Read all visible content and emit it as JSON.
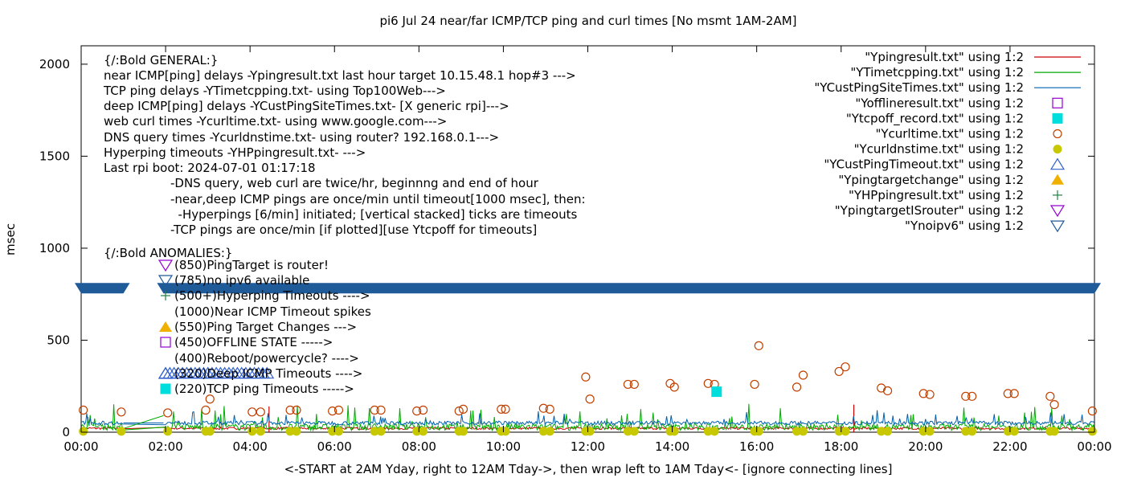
{
  "colors": {
    "ping": "#cc0000",
    "tcp": "#00aa00",
    "cust": "#0060ad",
    "offline": "#9400d3",
    "tcpoff": "#00dddd",
    "curl": "#c04000",
    "dns": "#c8c800",
    "custTimeout": "#3060cc",
    "targetChange": "#f0b000",
    "hyperping": "#208040",
    "router": "#9400d3",
    "noipv6": "#1f5a99",
    "noipv6band": "#2a5f86"
  },
  "chart_data": {
    "type": "line",
    "title": "pi6 Jul 24  near/far ICMP/TCP ping and curl times [No msmt 1AM-2AM]",
    "xlabel": "<-START at 2AM Yday, right to 12AM Tday->, then wrap left to 1AM Tday<- [ignore connecting lines]",
    "ylabel": "msec",
    "xlim": [
      0,
      24
    ],
    "ylim": [
      0,
      2100
    ],
    "xticks": [
      0,
      2,
      4,
      6,
      8,
      10,
      12,
      14,
      16,
      18,
      20,
      22,
      24
    ],
    "xtick_labels": [
      "00:00",
      "02:00",
      "04:00",
      "06:00",
      "08:00",
      "10:00",
      "12:00",
      "14:00",
      "16:00",
      "18:00",
      "20:00",
      "22:00",
      "00:00"
    ],
    "yticks": [
      0,
      500,
      1000,
      1500,
      2000
    ],
    "ytick_labels": [
      "0",
      "500",
      "1000",
      "1500",
      "2000"
    ],
    "grid": false,
    "legend_position": "top-right",
    "legend": [
      {
        "label": "\"Ypingresult.txt\" using 1:2",
        "marker": "line",
        "color": "ping"
      },
      {
        "label": "\"YTimetcpping.txt\" using 1:2",
        "marker": "line",
        "color": "tcp"
      },
      {
        "label": "\"YCustPingSiteTimes.txt\" using 1:2",
        "marker": "line",
        "color": "cust"
      },
      {
        "label": "\"Yofflineresult.txt\" using 1:2",
        "marker": "open-square",
        "color": "offline"
      },
      {
        "label": "\"Ytcpoff_record.txt\" using 1:2",
        "marker": "filled-square",
        "color": "tcpoff"
      },
      {
        "label": "\"Ycurltime.txt\" using 1:2",
        "marker": "open-circle",
        "color": "curl"
      },
      {
        "label": "\"Ycurldnstime.txt\" using 1:2",
        "marker": "filled-circle",
        "color": "dns"
      },
      {
        "label": "\"YCustPingTimeout.txt\" using 1:2",
        "marker": "open-triangle",
        "color": "custTimeout"
      },
      {
        "label": "\"Ypingtargetchange\" using 1:2",
        "marker": "filled-triangle",
        "color": "targetChange"
      },
      {
        "label": "\"YHPpingresult.txt\" using 1:2",
        "marker": "plus",
        "color": "hyperping"
      },
      {
        "label": "\"YpingtargetISrouter\" using 1:2",
        "marker": "open-down-triangle",
        "color": "router"
      },
      {
        "label": "\"Ynoipv6\" using 1:2",
        "marker": "open-down-triangle",
        "color": "noipv6"
      }
    ],
    "annotations": [
      "{/:Bold GENERAL:}",
      "near ICMP[ping] delays -Ypingresult.txt last hour target 10.15.48.1 hop#3 --->",
      "TCP ping delays -YTimetcpping.txt- using Top100Web--->",
      "deep ICMP[ping] delays -YCustPingSiteTimes.txt- [X generic rpi]--->",
      "web curl times -Ycurltime.txt- using www.google.com--->",
      "DNS query times -Ycurldnstime.txt- using router? 192.168.0.1--->",
      "Hyperping timeouts -YHPpingresult.txt- --->",
      "Last rpi boot: 2024-07-01 01:17:18"
    ],
    "notes": [
      "-DNS query, web curl are twice/hr, beginnng and end of hour",
      "-near,deep ICMP pings are once/min until timeout[1000 msec], then:",
      "  -Hyperpings [6/min] initiated; [vertical stacked] ticks are timeouts",
      "-TCP pings are once/min [if plotted][use Ytcpoff for timeouts]"
    ],
    "anomalies_title": "{/:Bold ANOMALIES:}",
    "anomalies": [
      {
        "text": "(850)PingTarget is router!",
        "marker": "open-down-triangle",
        "color": "router",
        "y": 850
      },
      {
        "text": "(785)no ipv6 available",
        "marker": "open-down-triangle",
        "color": "noipv6",
        "y": 785
      },
      {
        "text": "(500+)Hyperping Timeouts ---->",
        "marker": "plus",
        "color": "hyperping",
        "y": 700
      },
      {
        "text": "(1000)Near ICMP Timeout spikes",
        "marker": "none",
        "color": "ping",
        "y": 620
      },
      {
        "text": "(550)Ping Target Changes --->",
        "marker": "filled-triangle",
        "color": "targetChange",
        "y": 540
      },
      {
        "text": "(450)OFFLINE STATE ----->",
        "marker": "open-square",
        "color": "offline",
        "y": 460
      },
      {
        "text": "(400)Reboot/powercycle? ---->",
        "marker": "none",
        "color": "offline",
        "y": 380
      },
      {
        "text": "(320)Deep ICMP Timeouts ---->",
        "marker": "open-triangle",
        "color": "custTimeout",
        "y": 300
      },
      {
        "text": "(220)TCP ping Timeouts ----->",
        "marker": "filled-square",
        "color": "tcpoff",
        "y": 220
      }
    ],
    "series": [
      {
        "name": "\"Ycurltime.txt\" using 1:2",
        "type": "scatter",
        "marker": "open-circle",
        "color": "curl",
        "x": [
          0.05,
          0.95,
          2.05,
          2.95,
          3.05,
          4.05,
          4.25,
          4.95,
          5.1,
          5.95,
          6.1,
          6.95,
          7.1,
          7.95,
          8.1,
          8.95,
          9.05,
          9.95,
          10.05,
          10.95,
          11.1,
          11.95,
          12.05,
          12.95,
          13.1,
          13.95,
          14.05,
          14.85,
          15.0,
          15.95,
          16.05,
          16.95,
          17.1,
          17.95,
          18.1,
          18.95,
          19.1,
          19.95,
          20.1,
          20.95,
          21.1,
          21.95,
          22.1,
          22.95,
          23.05,
          23.95
        ],
        "y": [
          120,
          110,
          105,
          120,
          180,
          110,
          110,
          120,
          120,
          115,
          120,
          120,
          120,
          115,
          120,
          115,
          125,
          125,
          125,
          130,
          125,
          300,
          180,
          260,
          260,
          265,
          245,
          265,
          260,
          260,
          470,
          245,
          310,
          330,
          355,
          240,
          225,
          210,
          205,
          195,
          195,
          210,
          210,
          195,
          150,
          115
        ]
      },
      {
        "name": "\"Ycurldnstime.txt\" using 1:2",
        "type": "scatter",
        "marker": "filled-circle",
        "color": "dns",
        "x": [
          0.05,
          0.95,
          2.05,
          2.95,
          3.05,
          4.05,
          4.25,
          4.95,
          5.1,
          5.95,
          6.1,
          6.95,
          7.1,
          7.95,
          8.1,
          8.95,
          9.05,
          9.95,
          10.05,
          10.95,
          11.1,
          11.95,
          12.05,
          12.95,
          13.1,
          13.95,
          14.05,
          14.85,
          15.0,
          15.95,
          16.05,
          16.95,
          17.1,
          17.95,
          18.1,
          18.95,
          19.1,
          19.95,
          20.1,
          20.95,
          21.1,
          21.95,
          22.1,
          22.95,
          23.05,
          23.95
        ],
        "y": [
          5,
          5,
          5,
          5,
          5,
          5,
          5,
          5,
          5,
          5,
          5,
          5,
          5,
          5,
          5,
          5,
          5,
          5,
          5,
          5,
          5,
          5,
          5,
          5,
          5,
          5,
          5,
          5,
          5,
          5,
          5,
          5,
          5,
          5,
          5,
          5,
          5,
          5,
          5,
          5,
          5,
          5,
          5,
          5,
          5,
          5
        ]
      },
      {
        "name": "\"Ytcpoff_record.txt\" using 1:2",
        "type": "scatter",
        "marker": "filled-square",
        "color": "tcpoff",
        "x": [
          15.05
        ],
        "y": [
          220
        ]
      },
      {
        "name": "\"YCustPingTimeout.txt\" using 1:2",
        "type": "scatter",
        "marker": "open-triangle",
        "color": "custTimeout",
        "x": [
          2.0,
          2.1,
          2.2,
          2.3,
          2.4,
          2.5,
          2.6,
          2.7,
          2.8,
          2.9,
          3.0,
          3.1,
          3.2,
          3.3,
          3.4,
          3.5,
          3.6,
          3.7,
          3.8,
          3.9,
          4.0,
          4.1,
          4.2,
          4.3,
          4.4
        ],
        "y": [
          320,
          320,
          320,
          320,
          320,
          320,
          320,
          320,
          320,
          320,
          320,
          320,
          320,
          320,
          320,
          320,
          320,
          320,
          320,
          320,
          320,
          320,
          320,
          320,
          320
        ]
      },
      {
        "name": "\"Ynoipv6\" using 1:2",
        "type": "band",
        "marker": "open-down-triangle",
        "color": "noipv6",
        "segments": [
          [
            0,
            1.0
          ],
          [
            1.95,
            24
          ]
        ],
        "y": 785
      },
      {
        "name": "\"Ypingresult.txt\" using 1:2",
        "type": "line",
        "color": "ping",
        "spikes": [
          [
            4.45,
            140
          ],
          [
            18.3,
            150
          ]
        ],
        "base": 25
      },
      {
        "name": "\"YTimetcpping.txt\" using 1:2",
        "type": "line",
        "color": "tcp",
        "base": 35
      },
      {
        "name": "\"YCustPingSiteTimes.txt\" using 1:2",
        "type": "line",
        "color": "cust",
        "base": 50
      }
    ]
  }
}
